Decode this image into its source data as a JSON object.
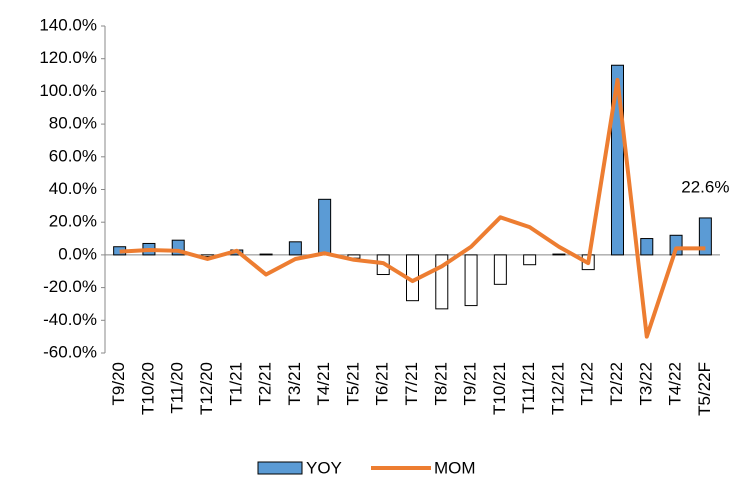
{
  "chart_data": {
    "type": "bar",
    "categories": [
      "T9/20",
      "T10/20",
      "T11/20",
      "T12/20",
      "T1/21",
      "T2/21",
      "T3/21",
      "T4/21",
      "T5/21",
      "T6/21",
      "T7/21",
      "T8/21",
      "T9/21",
      "T10/21",
      "T11/21",
      "T12/21",
      "T1/22",
      "T2/22",
      "T3/22",
      "T4/22",
      "T5/22F"
    ],
    "series": [
      {
        "name": "YOY",
        "type": "bar",
        "color": "#5b9bd5",
        "negative_color": "#ffffff",
        "values": [
          5,
          7,
          9,
          -1,
          3,
          0.5,
          8,
          34,
          -2,
          -12,
          -28,
          -33,
          -31,
          -18,
          -6,
          0.5,
          -9,
          116,
          10,
          12,
          22.6
        ],
        "value_labels": [
          null,
          null,
          null,
          null,
          null,
          null,
          null,
          null,
          null,
          null,
          null,
          null,
          null,
          null,
          null,
          null,
          null,
          null,
          null,
          null,
          "22.6%"
        ]
      },
      {
        "name": "MOM",
        "type": "line",
        "color": "#ed7d31",
        "values": [
          2,
          3,
          2.5,
          -2.5,
          2.5,
          -12,
          -2.5,
          1,
          -3,
          -5,
          -16,
          -7,
          5,
          23,
          17,
          5,
          -5,
          107,
          -50,
          4,
          4
        ]
      }
    ],
    "ylim": [
      -60,
      140
    ],
    "yticks": [
      {
        "value": -60,
        "label": "-60.0%"
      },
      {
        "value": -40,
        "label": "-40.0%"
      },
      {
        "value": -20,
        "label": "-20.0%"
      },
      {
        "value": 0,
        "label": "0.0%"
      },
      {
        "value": 20,
        "label": "20.0%"
      },
      {
        "value": 40,
        "label": "40.0%"
      },
      {
        "value": 60,
        "label": "60.0%"
      },
      {
        "value": 80,
        "label": "80.0%"
      },
      {
        "value": 100,
        "label": "100.0%"
      },
      {
        "value": 120,
        "label": "120.0%"
      },
      {
        "value": 140,
        "label": "140.0%"
      }
    ],
    "legend": "bottom"
  }
}
